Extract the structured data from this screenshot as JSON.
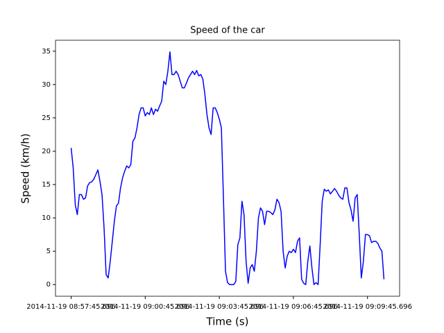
{
  "chart_data": {
    "type": "line",
    "title": "Speed of the car",
    "x_label": "Time (s)",
    "y_label": "Speed (km/h)",
    "color": "#0000ff",
    "grid": false,
    "x": [
      "2014-11-19 08:57:45.696",
      "2014-11-19 08:57:50.696",
      "2014-11-19 08:57:55.696",
      "2014-11-19 08:58:00.696",
      "2014-11-19 08:58:05.696",
      "2014-11-19 08:58:10.696",
      "2014-11-19 08:58:15.696",
      "2014-11-19 08:58:20.696",
      "2014-11-19 08:58:25.696",
      "2014-11-19 08:58:30.696",
      "2014-11-19 08:58:35.696",
      "2014-11-19 08:58:40.696",
      "2014-11-19 08:58:45.696",
      "2014-11-19 08:58:50.696",
      "2014-11-19 08:58:55.696",
      "2014-11-19 08:59:00.696",
      "2014-11-19 08:59:05.696",
      "2014-11-19 08:59:10.696",
      "2014-11-19 08:59:15.696",
      "2014-11-19 08:59:20.696",
      "2014-11-19 08:59:25.696",
      "2014-11-19 08:59:30.696",
      "2014-11-19 08:59:35.696",
      "2014-11-19 08:59:40.696",
      "2014-11-19 08:59:45.696",
      "2014-11-19 08:59:50.696",
      "2014-11-19 08:59:55.696",
      "2014-11-19 09:00:00.696",
      "2014-11-19 09:00:05.696",
      "2014-11-19 09:00:10.696",
      "2014-11-19 09:00:15.696",
      "2014-11-19 09:00:20.696",
      "2014-11-19 09:00:25.696",
      "2014-11-19 09:00:30.696",
      "2014-11-19 09:00:35.696",
      "2014-11-19 09:00:40.696",
      "2014-11-19 09:00:45.696",
      "2014-11-19 09:00:50.696",
      "2014-11-19 09:00:55.696",
      "2014-11-19 09:01:00.696",
      "2014-11-19 09:01:05.696",
      "2014-11-19 09:01:10.696",
      "2014-11-19 09:01:15.696",
      "2014-11-19 09:01:20.696",
      "2014-11-19 09:01:25.696",
      "2014-11-19 09:01:30.696",
      "2014-11-19 09:01:35.696",
      "2014-11-19 09:01:40.696",
      "2014-11-19 09:01:45.696",
      "2014-11-19 09:01:50.696",
      "2014-11-19 09:01:55.696",
      "2014-11-19 09:02:00.696",
      "2014-11-19 09:02:05.696",
      "2014-11-19 09:02:10.696",
      "2014-11-19 09:02:15.696",
      "2014-11-19 09:02:20.696",
      "2014-11-19 09:02:25.696",
      "2014-11-19 09:02:30.696",
      "2014-11-19 09:02:35.696",
      "2014-11-19 09:02:40.696",
      "2014-11-19 09:02:45.696",
      "2014-11-19 09:02:50.696",
      "2014-11-19 09:02:55.696",
      "2014-11-19 09:03:00.696",
      "2014-11-19 09:03:05.696",
      "2014-11-19 09:03:10.696",
      "2014-11-19 09:03:15.696",
      "2014-11-19 09:03:20.696",
      "2014-11-19 09:03:25.696",
      "2014-11-19 09:03:30.696",
      "2014-11-19 09:03:35.696",
      "2014-11-19 09:03:40.696",
      "2014-11-19 09:03:45.696",
      "2014-11-19 09:03:50.696",
      "2014-11-19 09:03:55.696",
      "2014-11-19 09:04:00.696",
      "2014-11-19 09:04:05.696",
      "2014-11-19 09:04:10.696",
      "2014-11-19 09:04:15.696",
      "2014-11-19 09:04:20.696",
      "2014-11-19 09:04:25.696",
      "2014-11-19 09:04:30.696",
      "2014-11-19 09:04:35.696",
      "2014-11-19 09:04:40.696",
      "2014-11-19 09:04:45.696",
      "2014-11-19 09:04:50.696",
      "2014-11-19 09:04:55.696",
      "2014-11-19 09:05:00.696",
      "2014-11-19 09:05:05.696",
      "2014-11-19 09:05:10.696",
      "2014-11-19 09:05:15.696",
      "2014-11-19 09:05:20.696",
      "2014-11-19 09:05:25.696",
      "2014-11-19 09:05:30.696",
      "2014-11-19 09:05:35.696",
      "2014-11-19 09:05:40.696",
      "2014-11-19 09:05:45.696",
      "2014-11-19 09:05:50.696",
      "2014-11-19 09:05:55.696",
      "2014-11-19 09:06:00.696",
      "2014-11-19 09:06:05.696",
      "2014-11-19 09:06:10.696",
      "2014-11-19 09:06:15.696",
      "2014-11-19 09:06:20.696",
      "2014-11-19 09:06:25.696",
      "2014-11-19 09:06:30.696",
      "2014-11-19 09:06:35.696",
      "2014-11-19 09:06:40.696",
      "2014-11-19 09:06:45.696",
      "2014-11-19 09:06:50.696",
      "2014-11-19 09:06:55.696",
      "2014-11-19 09:07:00.696",
      "2014-11-19 09:07:05.696",
      "2014-11-19 09:07:10.696",
      "2014-11-19 09:07:15.696",
      "2014-11-19 09:07:20.696",
      "2014-11-19 09:07:25.696",
      "2014-11-19 09:07:30.696",
      "2014-11-19 09:07:35.696",
      "2014-11-19 09:07:40.696",
      "2014-11-19 09:07:45.696",
      "2014-11-19 09:07:50.696",
      "2014-11-19 09:07:55.696",
      "2014-11-19 09:08:00.696",
      "2014-11-19 09:08:05.696",
      "2014-11-19 09:08:10.696",
      "2014-11-19 09:08:15.696",
      "2014-11-19 09:08:20.696",
      "2014-11-19 09:08:25.696",
      "2014-11-19 09:08:30.696",
      "2014-11-19 09:08:35.696",
      "2014-11-19 09:08:40.696",
      "2014-11-19 09:08:45.696",
      "2014-11-19 09:08:50.696",
      "2014-11-19 09:08:55.696",
      "2014-11-19 09:09:00.696",
      "2014-11-19 09:09:05.696",
      "2014-11-19 09:09:10.696",
      "2014-11-19 09:09:15.696",
      "2014-11-19 09:09:20.696",
      "2014-11-19 09:09:25.696",
      "2014-11-19 09:09:30.696",
      "2014-11-19 09:09:35.696",
      "2014-11-19 09:09:40.696",
      "2014-11-19 09:09:45.696",
      "2014-11-19 09:09:50.696",
      "2014-11-19 09:09:55.696",
      "2014-11-19 09:10:00.696",
      "2014-11-19 09:10:05.696",
      "2014-11-19 09:10:10.696",
      "2014-11-19 09:10:15.696",
      "2014-11-19 09:10:20.696",
      "2014-11-19 09:10:25.696"
    ],
    "values": [
      20.5,
      17.5,
      12,
      10.5,
      13.5,
      13.5,
      12.8,
      13,
      14.8,
      15.3,
      15.4,
      15.8,
      16.5,
      17.2,
      15.5,
      13.5,
      8.5,
      1.5,
      1,
      3.5,
      6.5,
      9.5,
      11.8,
      12.2,
      14.5,
      16,
      17,
      17.8,
      17.5,
      18,
      21.5,
      22,
      23.5,
      25.5,
      26.5,
      26.5,
      25.3,
      25.8,
      25.5,
      26.5,
      25.5,
      26.3,
      26,
      26.8,
      27.5,
      30.5,
      30,
      32,
      34.9,
      31.5,
      31.5,
      32,
      31.5,
      30.5,
      29.5,
      29.5,
      30.2,
      31,
      31.5,
      32,
      31.5,
      32.1,
      31.3,
      31.5,
      30.8,
      28.5,
      25.5,
      23.5,
      22.5,
      26.5,
      26.5,
      25.8,
      24.8,
      23.5,
      13,
      2,
      0.3,
      0,
      0,
      0,
      0.5,
      6,
      7,
      12.5,
      10.5,
      3.5,
      0.2,
      2.5,
      3,
      2,
      5,
      10,
      11.5,
      11,
      9,
      11,
      11,
      10.8,
      10.5,
      11.2,
      12.8,
      12.3,
      11,
      5,
      2.5,
      4.3,
      5,
      4.8,
      5.3,
      4.8,
      6.5,
      7,
      0.8,
      0.2,
      0,
      3.5,
      5.8,
      2.5,
      0,
      0.3,
      0,
      6,
      12.5,
      14.3,
      14,
      14.2,
      13.6,
      14,
      14.4,
      14,
      13.4,
      13,
      12.8,
      14.5,
      14.5,
      12.3,
      11.2,
      9.5,
      13,
      13.5,
      7.5,
      1,
      3.5,
      7.5,
      7.5,
      7.3,
      6.3,
      6.5,
      6.5,
      6.2,
      5.5,
      5,
      0.8
    ],
    "xlim": [
      "2014-11-19 08:57:07.696",
      "2014-11-19 09:11:03.696"
    ],
    "xticks": [
      "2014-11-19 08:57:45.696",
      "2014-11-19 09:00:45.696",
      "2014-11-19 09:03:45.696",
      "2014-11-19 09:06:45.696",
      "2014-11-19 09:09:45.696"
    ],
    "ylim": [
      -1.745,
      36.645
    ],
    "yticks": [
      0,
      5,
      10,
      15,
      20,
      25,
      30,
      35
    ]
  }
}
